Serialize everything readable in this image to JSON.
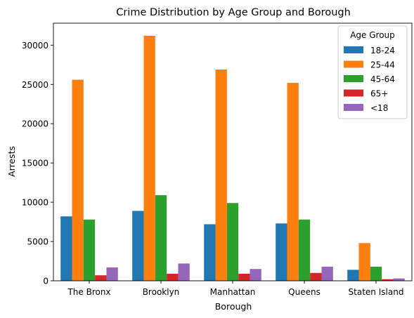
{
  "chart_data": {
    "type": "bar",
    "title": "Crime Distribution by Age Group and Borough",
    "xlabel": "Borough",
    "ylabel": "Arrests",
    "categories": [
      "The Bronx",
      "Brooklyn",
      "Manhattan",
      "Queens",
      "Staten Island"
    ],
    "ylim": [
      0,
      32800
    ],
    "yticks": [
      0,
      5000,
      10000,
      15000,
      20000,
      25000,
      30000
    ],
    "grid": false,
    "legend": {
      "title": "Age Group",
      "placement": "top-right"
    },
    "series": [
      {
        "name": "18-24",
        "color": "#1f77b4",
        "values": [
          8200,
          8900,
          7200,
          7300,
          1400
        ]
      },
      {
        "name": "25-44",
        "color": "#ff7f0e",
        "values": [
          25600,
          31200,
          26900,
          25200,
          4800
        ]
      },
      {
        "name": "45-64",
        "color": "#2ca02c",
        "values": [
          7800,
          10900,
          9900,
          7800,
          1800
        ]
      },
      {
        "name": "65+",
        "color": "#d62728",
        "values": [
          700,
          900,
          900,
          1000,
          200
        ]
      },
      {
        "name": "<18",
        "color": "#9467bd",
        "values": [
          1700,
          2200,
          1500,
          1800,
          300
        ]
      }
    ]
  }
}
